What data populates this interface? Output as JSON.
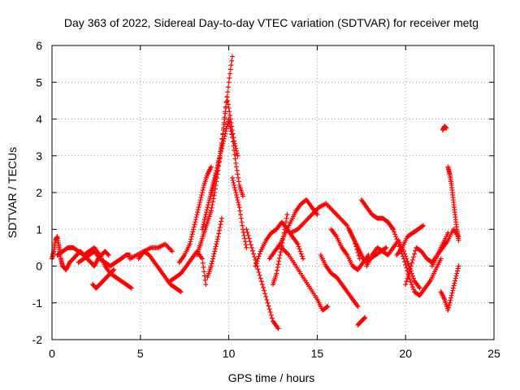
{
  "chart_data": {
    "type": "scatter",
    "title": "Day 363 of 2022, Sidereal Day-to-day VTEC variation (SDTVAR) for receiver metg",
    "xlabel": "GPS time / hours",
    "ylabel": "SDTVAR / TECUs",
    "xlim": [
      0,
      25
    ],
    "ylim": [
      -2,
      6
    ],
    "xticks": [
      0,
      5,
      10,
      15,
      20,
      25
    ],
    "yticks": [
      -2,
      -1,
      0,
      1,
      2,
      3,
      4,
      5,
      6
    ],
    "grid": true,
    "marker": "+",
    "color": "#ff0000",
    "series": [
      {
        "name": "s1",
        "x": [
          0.0,
          0.1,
          0.2,
          0.3,
          0.4,
          0.5,
          0.6,
          0.8,
          1.0,
          1.2,
          1.4,
          1.6,
          1.8,
          2.0,
          2.2,
          2.4,
          2.6,
          2.8,
          3.0,
          3.2
        ],
        "y": [
          0.2,
          0.4,
          0.7,
          0.8,
          0.5,
          0.2,
          0.0,
          -0.1,
          0.1,
          0.2,
          0.3,
          0.4,
          0.3,
          0.2,
          0.1,
          0.0,
          0.2,
          0.3,
          0.4,
          0.3
        ]
      },
      {
        "name": "s2",
        "x": [
          0.3,
          0.6,
          0.9,
          1.2,
          1.5,
          1.8,
          2.1,
          2.4,
          2.7,
          3.0,
          3.3,
          3.6,
          3.9,
          4.2,
          4.5
        ],
        "y": [
          0.3,
          0.4,
          0.5,
          0.5,
          0.4,
          0.3,
          0.4,
          0.5,
          0.3,
          0.0,
          -0.2,
          -0.3,
          -0.4,
          -0.5,
          -0.6
        ]
      },
      {
        "name": "s3",
        "x": [
          1.5,
          1.8,
          2.1,
          2.4,
          2.7,
          3.0,
          3.3,
          3.6,
          3.9,
          4.2,
          4.4
        ],
        "y": [
          0.1,
          0.2,
          0.3,
          0.4,
          0.2,
          0.1,
          0.0,
          0.1,
          0.2,
          0.3,
          0.3
        ]
      },
      {
        "name": "s4",
        "x": [
          2.3,
          2.5,
          2.7,
          2.9,
          3.1,
          3.3,
          3.5
        ],
        "y": [
          -0.5,
          -0.6,
          -0.5,
          -0.4,
          -0.3,
          -0.2,
          -0.1
        ]
      },
      {
        "name": "s5",
        "x": [
          4.4,
          4.8,
          5.2,
          5.6,
          6.0,
          6.4,
          6.8
        ],
        "y": [
          0.2,
          0.3,
          0.4,
          0.5,
          0.5,
          0.6,
          0.4
        ]
      },
      {
        "name": "s6",
        "x": [
          4.9,
          5.2,
          5.5,
          5.8,
          6.1,
          6.4,
          6.7,
          7.0,
          7.3
        ],
        "y": [
          0.2,
          0.4,
          0.3,
          0.1,
          -0.1,
          -0.3,
          -0.5,
          -0.6,
          -0.7
        ]
      },
      {
        "name": "s7",
        "x": [
          6.7,
          7.0,
          7.3,
          7.6,
          7.9,
          8.2,
          8.5,
          8.7
        ],
        "y": [
          -0.4,
          -0.3,
          -0.2,
          0.0,
          0.2,
          0.4,
          0.2,
          -0.5
        ]
      },
      {
        "name": "s8",
        "x": [
          7.2,
          7.5,
          7.8,
          8.0,
          8.2,
          8.4,
          8.6,
          8.8,
          9.0
        ],
        "y": [
          0.1,
          0.3,
          0.6,
          1.0,
          1.4,
          1.8,
          2.2,
          2.5,
          2.7
        ]
      },
      {
        "name": "s9",
        "x": [
          8.2,
          8.4,
          8.6,
          8.8,
          9.0,
          9.2,
          9.4,
          9.6,
          9.8,
          10.0,
          10.2
        ],
        "y": [
          0.3,
          0.6,
          0.9,
          1.2,
          1.5,
          2.0,
          2.6,
          3.3,
          4.2,
          5.0,
          5.7
        ]
      },
      {
        "name": "s10",
        "x": [
          8.5,
          8.7,
          8.9,
          9.1,
          9.3,
          9.5,
          9.7,
          9.9,
          10.1,
          10.3,
          10.5
        ],
        "y": [
          1.0,
          1.4,
          1.8,
          2.1,
          2.5,
          3.0,
          3.7,
          4.6,
          4.0,
          3.4,
          3.0
        ]
      },
      {
        "name": "s11",
        "x": [
          9.0,
          9.2,
          9.4,
          9.6,
          9.8,
          10.0,
          10.2,
          10.4,
          10.6,
          10.8
        ],
        "y": [
          2.0,
          2.4,
          2.8,
          3.2,
          3.6,
          4.0,
          3.5,
          2.8,
          2.2,
          1.9
        ]
      },
      {
        "name": "s12",
        "x": [
          8.8,
          9.0,
          9.2,
          9.4,
          9.6
        ],
        "y": [
          -0.3,
          0.0,
          0.4,
          0.8,
          1.3
        ]
      },
      {
        "name": "s13",
        "x": [
          10.2,
          10.4,
          10.6,
          10.8,
          11.0
        ],
        "y": [
          2.4,
          2.0,
          1.6,
          1.0,
          0.5
        ]
      },
      {
        "name": "s14",
        "x": [
          11.0,
          11.3,
          11.6,
          11.9,
          12.2,
          12.5,
          12.8
        ],
        "y": [
          1.0,
          0.5,
          0.0,
          -0.5,
          -1.0,
          -1.5,
          -1.7
        ]
      },
      {
        "name": "s15",
        "x": [
          11.5,
          11.8,
          12.1,
          12.4,
          12.7,
          13.0,
          13.3,
          13.6,
          13.9,
          14.2
        ],
        "y": [
          0.0,
          0.4,
          0.7,
          0.9,
          1.0,
          1.2,
          1.0,
          0.8,
          0.6,
          0.2
        ]
      },
      {
        "name": "s16",
        "x": [
          12.3,
          12.6,
          12.9,
          13.2,
          13.5,
          13.8,
          14.1,
          14.4,
          14.7,
          15.0
        ],
        "y": [
          0.2,
          0.4,
          0.6,
          0.9,
          1.2,
          1.5,
          1.7,
          1.8,
          1.6,
          1.4
        ]
      },
      {
        "name": "s17",
        "x": [
          12.5,
          12.7,
          12.9,
          13.1,
          13.3
        ],
        "y": [
          -0.5,
          -0.2,
          0.3,
          0.8,
          1.4
        ]
      },
      {
        "name": "s18",
        "x": [
          13.0,
          13.4,
          13.8,
          14.2,
          14.6,
          15.0,
          15.3,
          15.6
        ],
        "y": [
          0.5,
          0.3,
          0.0,
          -0.3,
          -0.6,
          -0.9,
          -1.2,
          -1.1
        ]
      },
      {
        "name": "s19",
        "x": [
          13.5,
          13.9,
          14.3,
          14.7,
          15.1,
          15.5,
          15.9,
          16.3,
          16.7,
          17.1,
          17.4
        ],
        "y": [
          0.9,
          1.0,
          1.2,
          1.4,
          1.6,
          1.7,
          1.5,
          1.3,
          1.1,
          0.7,
          0.2
        ]
      },
      {
        "name": "s20",
        "x": [
          15.2,
          15.5,
          15.8,
          16.1,
          16.4,
          16.7,
          17.0,
          17.3
        ],
        "y": [
          0.3,
          0.0,
          -0.2,
          -0.3,
          -0.5,
          -0.7,
          -0.9,
          -1.1
        ]
      },
      {
        "name": "s21",
        "x": [
          15.8,
          16.1,
          16.4,
          16.7,
          17.0,
          17.3,
          17.6,
          17.9
        ],
        "y": [
          1.0,
          0.8,
          0.5,
          0.3,
          0.0,
          -0.1,
          0.1,
          0.3
        ]
      },
      {
        "name": "s22",
        "x": [
          16.8,
          17.0,
          17.2,
          17.4,
          17.6,
          17.8,
          18.0,
          18.3,
          18.6,
          18.9
        ],
        "y": [
          1.0,
          0.8,
          0.6,
          0.4,
          0.2,
          0.1,
          0.2,
          0.3,
          0.4,
          0.5
        ]
      },
      {
        "name": "s23",
        "x": [
          17.5,
          17.8,
          18.1,
          18.4,
          18.7,
          19.0,
          19.3
        ],
        "y": [
          1.8,
          1.6,
          1.4,
          1.3,
          1.3,
          1.2,
          1.0
        ]
      },
      {
        "name": "s24",
        "x": [
          17.3,
          17.5,
          17.7
        ],
        "y": [
          -1.6,
          -1.5,
          -1.4
        ]
      },
      {
        "name": "s25",
        "x": [
          17.8,
          18.1,
          18.4,
          18.7,
          19.0,
          19.3,
          19.6,
          19.9,
          20.2,
          20.5,
          20.8
        ],
        "y": [
          0.0,
          0.3,
          0.5,
          0.4,
          0.3,
          0.5,
          0.7,
          0.4,
          0.0,
          -0.4,
          -0.6
        ]
      },
      {
        "name": "s26",
        "x": [
          19.0,
          19.3,
          19.6,
          19.9,
          20.2,
          20.5,
          20.8,
          21.1,
          21.4,
          21.7,
          22.0
        ],
        "y": [
          1.2,
          1.0,
          0.6,
          0.2,
          -0.3,
          -0.7,
          -0.8,
          -0.6,
          -0.4,
          -0.1,
          0.2
        ]
      },
      {
        "name": "s27",
        "x": [
          19.5,
          19.8,
          20.1,
          20.4,
          20.7,
          21.0
        ],
        "y": [
          0.3,
          0.5,
          0.8,
          0.9,
          1.0,
          1.1
        ]
      },
      {
        "name": "s28",
        "x": [
          20.0,
          20.3,
          20.6,
          20.9,
          21.2,
          21.5,
          21.8,
          22.1,
          22.4
        ],
        "y": [
          -0.5,
          0.0,
          0.5,
          0.4,
          0.2,
          0.1,
          0.3,
          0.6,
          0.9
        ]
      },
      {
        "name": "s29",
        "x": [
          21.5,
          21.8,
          22.1,
          22.4,
          22.7,
          23.0
        ],
        "y": [
          0.0,
          0.3,
          0.5,
          0.7,
          1.0,
          0.8
        ]
      },
      {
        "name": "s30",
        "x": [
          22.1,
          22.2,
          22.3
        ],
        "y": [
          3.7,
          3.8,
          3.75
        ]
      },
      {
        "name": "s31",
        "x": [
          22.4,
          22.5,
          22.6,
          22.7,
          22.8,
          22.9,
          23.0
        ],
        "y": [
          2.7,
          2.5,
          2.2,
          1.8,
          1.4,
          1.0,
          0.7
        ]
      },
      {
        "name": "s32",
        "x": [
          22.0,
          22.2,
          22.4,
          22.6,
          22.8,
          23.0
        ],
        "y": [
          -0.7,
          -0.9,
          -1.2,
          -0.8,
          -0.4,
          0.0
        ]
      }
    ]
  }
}
